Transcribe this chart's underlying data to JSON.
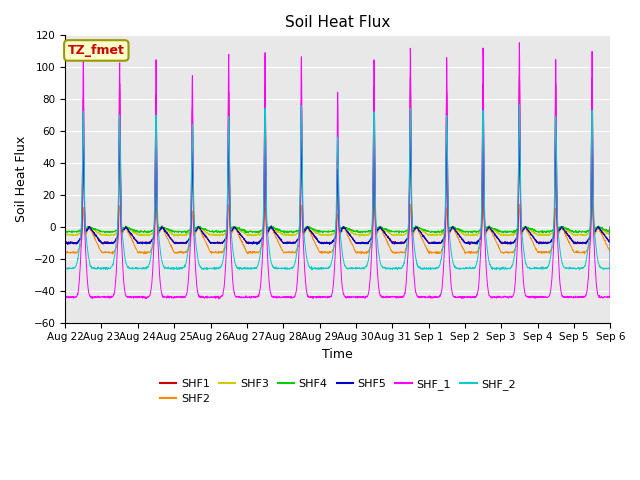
{
  "title": "Soil Heat Flux",
  "xlabel": "Time",
  "ylabel": "Soil Heat Flux",
  "ylim": [
    -60,
    120
  ],
  "yticks": [
    -60,
    -40,
    -20,
    0,
    20,
    40,
    60,
    80,
    100,
    120
  ],
  "annotation_text": "TZ_fmet",
  "annotation_color": "#cc0000",
  "annotation_bg": "#ffffcc",
  "annotation_border": "#999900",
  "bg_color": "#e8e8e8",
  "series": [
    {
      "label": "SHF1",
      "color": "#cc0000"
    },
    {
      "label": "SHF2",
      "color": "#ff8800"
    },
    {
      "label": "SHF3",
      "color": "#cccc00"
    },
    {
      "label": "SHF4",
      "color": "#00cc00"
    },
    {
      "label": "SHF5",
      "color": "#0000cc"
    },
    {
      "label": "SHF_1",
      "color": "#ff00ff"
    },
    {
      "label": "SHF_2",
      "color": "#00cccc"
    }
  ],
  "x_labels": [
    "Aug 22",
    "Aug 23",
    "Aug 24",
    "Aug 25",
    "Aug 26",
    "Aug 27",
    "Aug 28",
    "Aug 29",
    "Aug 30",
    "Aug 31",
    "Sep 1",
    "Sep 2",
    "Sep 3",
    "Sep 4",
    "Sep 5",
    "Sep 6"
  ],
  "figsize": [
    6.4,
    4.8
  ],
  "dpi": 100
}
